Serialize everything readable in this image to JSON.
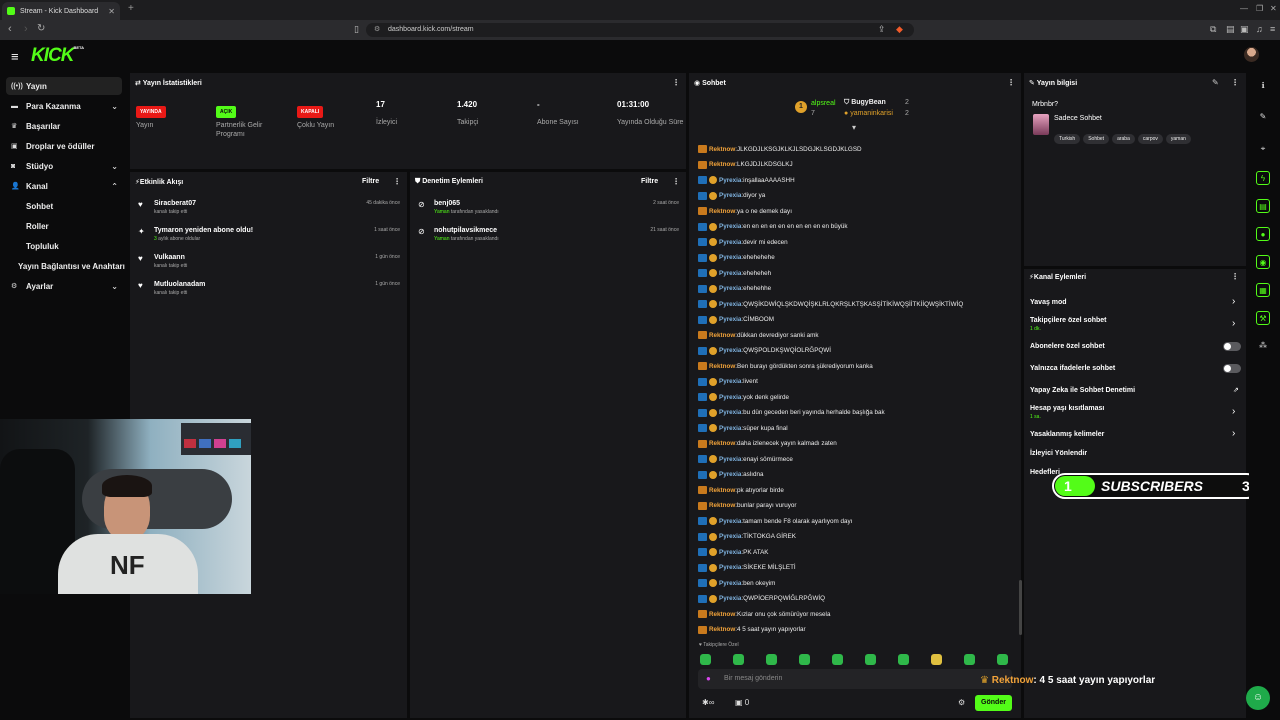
{
  "browser": {
    "tab_title": "Stream - Kick Dashboard",
    "url": "dashboard.kick.com/stream"
  },
  "nav": {
    "items": [
      {
        "label": "Yayın",
        "icon": "broadcast-icon"
      },
      {
        "label": "Para Kazanma",
        "icon": "money-icon"
      },
      {
        "label": "Başarılar",
        "icon": "trophy-icon"
      },
      {
        "label": "Droplar ve ödüller",
        "icon": "gift-icon"
      },
      {
        "label": "Stüdyo",
        "icon": "studio-icon"
      },
      {
        "label": "Kanal",
        "icon": "user-icon"
      }
    ],
    "sub_items": [
      "Sohbet",
      "Roller",
      "Topluluk"
    ],
    "connections": "Yayın Bağlantısı ve Anahtarı",
    "settings": "Ayarlar"
  },
  "stats": {
    "title": "Yayın İstatistikleri",
    "items": [
      {
        "badge": "YAYINDA",
        "label": "Yayın",
        "color": "#e91916"
      },
      {
        "badge": "AÇIK",
        "label": "Partnerlik Gelir Programı",
        "color": "#53fc18"
      },
      {
        "badge": "KAPALI",
        "label": "Çoklu Yayın",
        "color": "#e91916"
      },
      {
        "value": "17",
        "label": "İzleyici"
      },
      {
        "value": "1.420",
        "label": "Takipçi"
      },
      {
        "value": "-",
        "label": "Abone Sayısı"
      },
      {
        "value": "01:31:00",
        "label": "Yayında Olduğu Süre"
      }
    ]
  },
  "activity": {
    "title": "Etkinlik Akışı",
    "filter": "Filtre",
    "items": [
      {
        "name": "Siracberat07",
        "sub": "kanalı takip etti",
        "time": "45 dakika önce"
      },
      {
        "name": "Tymaron yeniden abone oldu!",
        "sub_count": "3",
        "sub": "aylık abone oldular",
        "time": "1 saat önce"
      },
      {
        "name": "Vulkaann",
        "sub": "kanalı takip etti",
        "time": "1 gün önce"
      },
      {
        "name": "Mutluolanadam",
        "sub": "kanalı takip etti",
        "time": "1 gün önce"
      }
    ]
  },
  "moderation": {
    "title": "Denetim Eylemleri",
    "filter": "Filtre",
    "items": [
      {
        "name": "benj065",
        "by": "Yaman",
        "sub": "tarafından yasaklandı",
        "time": "2 saat önce"
      },
      {
        "name": "nohutpilavsikmece",
        "by": "Yaman",
        "sub": "tarafından yasaklandı",
        "time": "21 saat önce"
      }
    ]
  },
  "chat": {
    "title": "Sohbet",
    "leaders": {
      "rank": "1",
      "first": "alpsreal",
      "first_count": "7",
      "second": "BugyBean",
      "second_count": "2",
      "third": "yamaninkarisi",
      "third_count": "2"
    },
    "messages": [
      {
        "u": "Rektnow",
        "m": "JLKGDJLKSGJKLKJLSDGJKLSGDJKLGSD"
      },
      {
        "u": "Rektnow",
        "m": "LKGJDJLKDSGLKJ"
      },
      {
        "u": "Pyrexia",
        "m": "inşallaaAAAASHH"
      },
      {
        "u": "Pyrexia",
        "m": "diyor ya"
      },
      {
        "u": "Rektnow",
        "m": "ya o ne demek dayı"
      },
      {
        "u": "Pyrexia",
        "m": "en en en en en en en en en en büyük"
      },
      {
        "u": "Pyrexia",
        "m": "devir mi edecen"
      },
      {
        "u": "Pyrexia",
        "m": "ehehehehe"
      },
      {
        "u": "Pyrexia",
        "m": "eheheheh"
      },
      {
        "u": "Pyrexia",
        "m": "ehehehhe"
      },
      {
        "u": "Pyrexia",
        "m": "QWŞİKDWİQLŞKDWQİŞKLRLQKRŞLKTŞKASŞİTİKİWQŞİİTKİİQWŞİKTİWİQ"
      },
      {
        "u": "Pyrexia",
        "m": "CİMBOOM"
      },
      {
        "u": "Rektnow",
        "m": "dükkan devrediyor sanki amk"
      },
      {
        "u": "Pyrexia",
        "m": "QWŞPOLDKŞWQİOLRĞPQWİ"
      },
      {
        "u": "Rektnow",
        "m": "Ben burayı gördükten sonra şükrediyorum kanka"
      },
      {
        "u": "Pyrexia",
        "m": "livent"
      },
      {
        "u": "Pyrexia",
        "m": "yok denk gelirde"
      },
      {
        "u": "Pyrexia",
        "m": "bu dün geceden beri yayında herhalde başlığa bak"
      },
      {
        "u": "Pyrexia",
        "m": "süper kupa final"
      },
      {
        "u": "Rektnow",
        "m": "daha izlenecek yayın kalmadı zaten"
      },
      {
        "u": "Pyrexia",
        "m": "enayi sömürmece"
      },
      {
        "u": "Pyrexia",
        "m": "aslıdna"
      },
      {
        "u": "Rektnow",
        "m": "pk atıyorlar birde"
      },
      {
        "u": "Rektnow",
        "m": "bunlar parayı vuruyor"
      },
      {
        "u": "Pyrexia",
        "m": "tamam bende F8 olarak ayarlıyom dayı"
      },
      {
        "u": "Pyrexia",
        "m": "TİKTOKGA GİREK"
      },
      {
        "u": "Pyrexia",
        "m": "PK ATAK"
      },
      {
        "u": "Pyrexia",
        "m": "SİKEKE MİLŞLETİ"
      },
      {
        "u": "Pyrexia",
        "m": "ben okeyim"
      },
      {
        "u": "Pyrexia",
        "m": "QWPİOERPQWİĞLRPĞWİQ"
      },
      {
        "u": "Rektnow",
        "m": "Kızlar onu çok sömürüyor mesela"
      },
      {
        "u": "Rektnow",
        "m": "4 5 saat yayın yapıyorlar"
      }
    ],
    "followers_only": "Takipçilere Özel",
    "input_placeholder": "Bir mesaj gönderin",
    "points": "0",
    "send": "Gönder"
  },
  "stream_info": {
    "title": "Yayın bilgisi",
    "stream_title": "Mrbnbr?",
    "category": "Sadece Sohbet",
    "tags": [
      "Turkish",
      "Sohbet",
      "araba",
      "carpov",
      "yaman"
    ]
  },
  "channel_actions": {
    "title": "Kanal Eylemleri",
    "items": [
      {
        "label": "Yavaş mod",
        "type": "arrow"
      },
      {
        "label": "Takipçilere özel sohbet",
        "sub": "1 dk.",
        "type": "arrow"
      },
      {
        "label": "Abonelere özel sohbet",
        "type": "toggle"
      },
      {
        "label": "Yalnızca ifadelerle sohbet",
        "type": "toggle"
      },
      {
        "label": "Yapay Zeka ile Sohbet Denetimi",
        "type": "external"
      },
      {
        "label": "Hesap yaşı kısıtlaması",
        "sub": "1 sa.",
        "type": "arrow"
      },
      {
        "label": "Yasaklanmış kelimeler",
        "type": "arrow"
      },
      {
        "label": "İzleyici Yönlendir",
        "type": "none"
      },
      {
        "label": "Hedefleri",
        "type": "arrow"
      }
    ]
  },
  "overlay": {
    "sub_left": "1",
    "sub_label": "SUBSCRIBERS",
    "sub_right": "3",
    "last_user": "Rektnow",
    "last_msg": ": 4 5 saat yayın yapıyorlar"
  },
  "colors": {
    "accent": "#53fc18",
    "live": "#e91916",
    "panel": "#18181b",
    "bg": "#0b0b0c"
  }
}
